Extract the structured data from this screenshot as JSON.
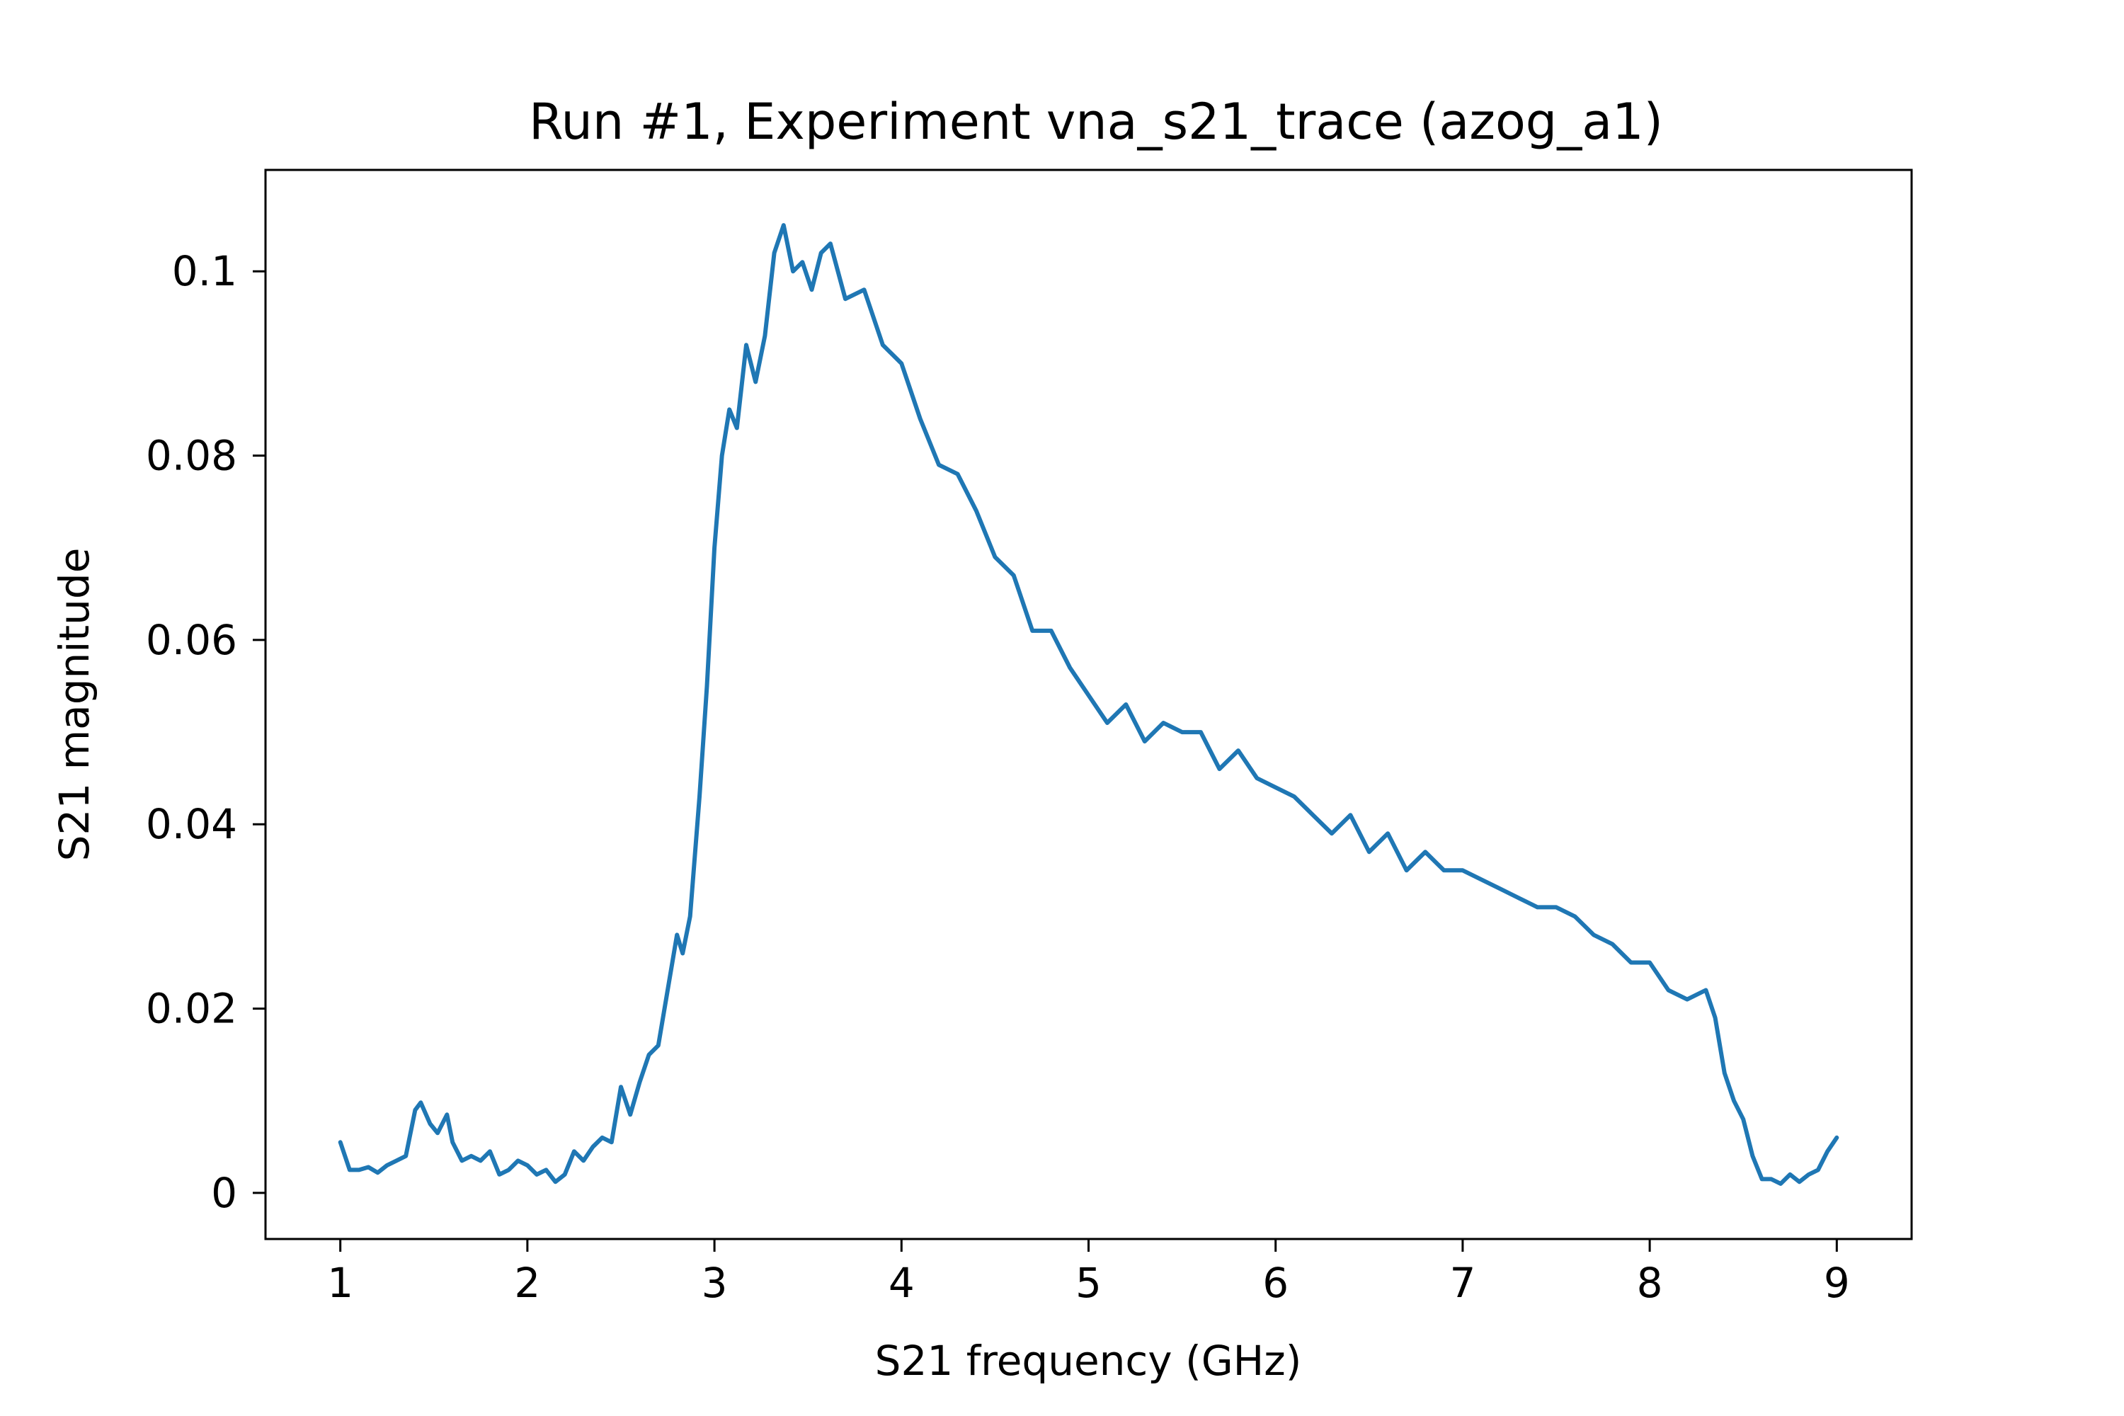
{
  "chart_data": {
    "type": "line",
    "title": "Run #1, Experiment vna_s21_trace (azog_a1)",
    "xlabel": "S21 frequency (GHz)",
    "ylabel": "S21 magnitude",
    "xlim": [
      0.6,
      9.4
    ],
    "ylim": [
      -0.005,
      0.111
    ],
    "xticks": [
      1,
      2,
      3,
      4,
      5,
      6,
      7,
      8,
      9
    ],
    "xtick_labels": [
      "1",
      "2",
      "3",
      "4",
      "5",
      "6",
      "7",
      "8",
      "9"
    ],
    "yticks": [
      0,
      0.02,
      0.04,
      0.06,
      0.08,
      0.1
    ],
    "ytick_labels": [
      "0",
      "0.02",
      "0.04",
      "0.06",
      "0.08",
      "0.1"
    ],
    "grid": false,
    "legend": "none",
    "series": [
      {
        "color": "#1f77b4",
        "x": [
          1.0,
          1.05,
          1.1,
          1.15,
          1.2,
          1.25,
          1.3,
          1.35,
          1.4,
          1.43,
          1.48,
          1.52,
          1.57,
          1.6,
          1.65,
          1.7,
          1.75,
          1.8,
          1.85,
          1.9,
          1.95,
          2.0,
          2.05,
          2.1,
          2.15,
          2.2,
          2.25,
          2.3,
          2.35,
          2.4,
          2.45,
          2.5,
          2.55,
          2.6,
          2.65,
          2.7,
          2.75,
          2.8,
          2.83,
          2.87,
          2.92,
          2.96,
          3.0,
          3.04,
          3.08,
          3.12,
          3.17,
          3.22,
          3.27,
          3.32,
          3.37,
          3.42,
          3.47,
          3.52,
          3.57,
          3.62,
          3.7,
          3.8,
          3.9,
          4.0,
          4.1,
          4.2,
          4.3,
          4.4,
          4.5,
          4.6,
          4.7,
          4.8,
          4.9,
          5.0,
          5.1,
          5.2,
          5.3,
          5.4,
          5.5,
          5.6,
          5.7,
          5.8,
          5.9,
          6.0,
          6.1,
          6.2,
          6.3,
          6.4,
          6.5,
          6.6,
          6.7,
          6.8,
          6.9,
          7.0,
          7.1,
          7.2,
          7.3,
          7.4,
          7.5,
          7.6,
          7.7,
          7.8,
          7.9,
          8.0,
          8.1,
          8.2,
          8.3,
          8.35,
          8.4,
          8.45,
          8.5,
          8.55,
          8.6,
          8.65,
          8.7,
          8.75,
          8.8,
          8.85,
          8.9,
          8.95,
          9.0
        ],
        "y": [
          0.0055,
          0.0025,
          0.0025,
          0.0028,
          0.0022,
          0.003,
          0.0035,
          0.004,
          0.009,
          0.0098,
          0.0075,
          0.0065,
          0.0085,
          0.0055,
          0.0035,
          0.004,
          0.0035,
          0.0045,
          0.002,
          0.0025,
          0.0035,
          0.003,
          0.002,
          0.0025,
          0.0012,
          0.002,
          0.0045,
          0.0035,
          0.005,
          0.006,
          0.0055,
          0.0115,
          0.0085,
          0.012,
          0.015,
          0.016,
          0.022,
          0.028,
          0.026,
          0.03,
          0.043,
          0.055,
          0.07,
          0.08,
          0.085,
          0.083,
          0.092,
          0.088,
          0.093,
          0.102,
          0.105,
          0.1,
          0.101,
          0.098,
          0.102,
          0.103,
          0.097,
          0.098,
          0.092,
          0.09,
          0.084,
          0.079,
          0.078,
          0.074,
          0.069,
          0.067,
          0.061,
          0.061,
          0.057,
          0.054,
          0.051,
          0.053,
          0.049,
          0.051,
          0.05,
          0.05,
          0.046,
          0.048,
          0.045,
          0.044,
          0.043,
          0.041,
          0.039,
          0.041,
          0.037,
          0.039,
          0.035,
          0.037,
          0.035,
          0.035,
          0.034,
          0.033,
          0.032,
          0.031,
          0.031,
          0.03,
          0.028,
          0.027,
          0.025,
          0.025,
          0.022,
          0.021,
          0.022,
          0.019,
          0.013,
          0.01,
          0.008,
          0.004,
          0.0015,
          0.0015,
          0.001,
          0.002,
          0.0012,
          0.002,
          0.0025,
          0.0045,
          0.006
        ]
      }
    ]
  }
}
